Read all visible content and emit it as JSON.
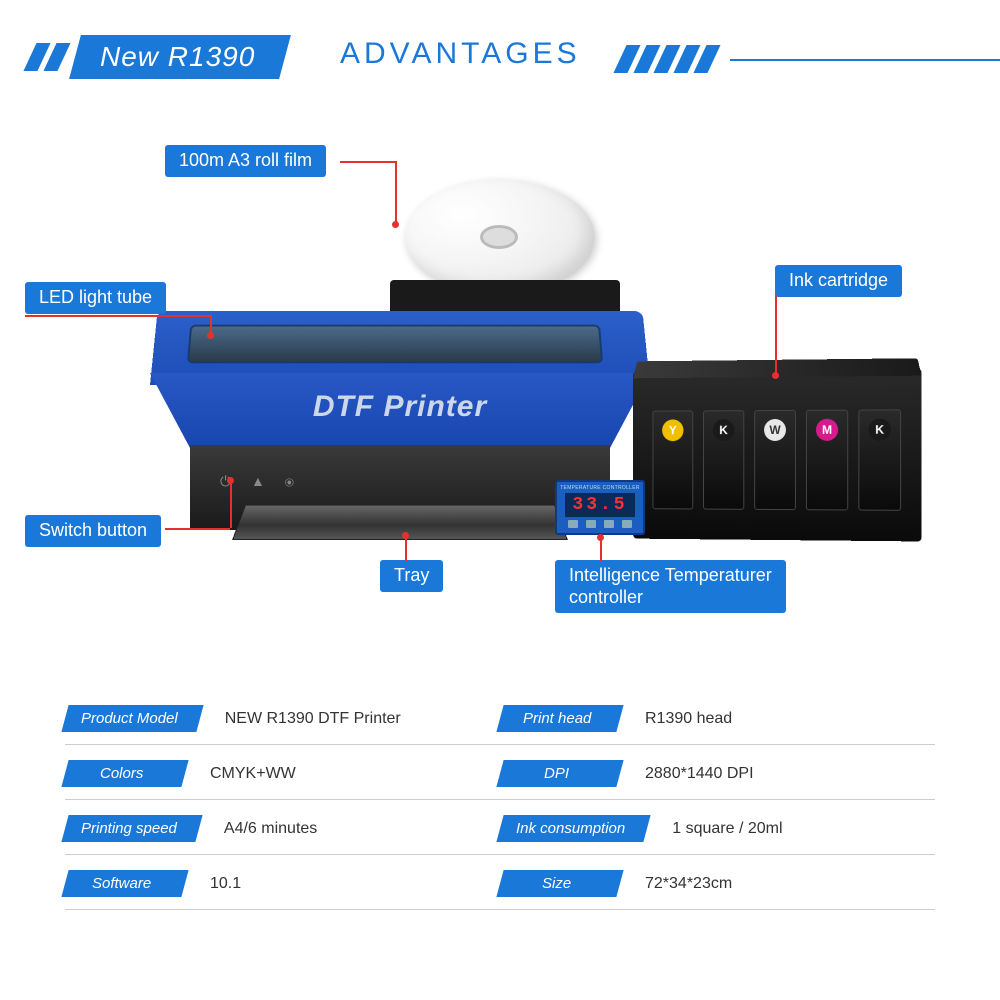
{
  "colors": {
    "primary": "#1a78d8",
    "callout_line": "#e63030",
    "text_dark": "#333333",
    "background": "#ffffff"
  },
  "header": {
    "model": "New R1390",
    "title": "ADVANTAGES"
  },
  "printer": {
    "body_label": "DTF Printer",
    "buttons_glyphs": "⏻ ▲ ⦿",
    "temperature": {
      "header": "TEMPERATURE CONTROLLER",
      "reading": "33.5"
    },
    "ink_slots": [
      {
        "letter": "Y",
        "color": "#f0c000"
      },
      {
        "letter": "K",
        "color": "#1a1a1a"
      },
      {
        "letter": "W",
        "color": "#e8e8e8"
      },
      {
        "letter": "M",
        "color": "#d81b8c"
      },
      {
        "letter": "K",
        "color": "#1a1a1a"
      }
    ]
  },
  "callouts": {
    "roll_film": "100m A3 roll film",
    "led_tube": "LED light tube",
    "ink_cartridge": "Ink cartridge",
    "switch_button": "Switch button",
    "tray": "Tray",
    "temp_controller": "Intelligence Temperaturer\ncontroller"
  },
  "specs": {
    "rows": [
      {
        "left_label": "Product Model",
        "left_value": "NEW R1390 DTF Printer",
        "right_label": "Print head",
        "right_value": "R1390 head"
      },
      {
        "left_label": "Colors",
        "left_value": "CMYK+WW",
        "right_label": "DPI",
        "right_value": "2880*1440 DPI"
      },
      {
        "left_label": "Printing speed",
        "left_value": "A4/6 minutes",
        "right_label": "Ink consumption",
        "right_value": "1 square / 20ml"
      },
      {
        "left_label": "Software",
        "left_value": "10.1",
        "right_label": "Size",
        "right_value": "72*34*23cm"
      }
    ]
  }
}
